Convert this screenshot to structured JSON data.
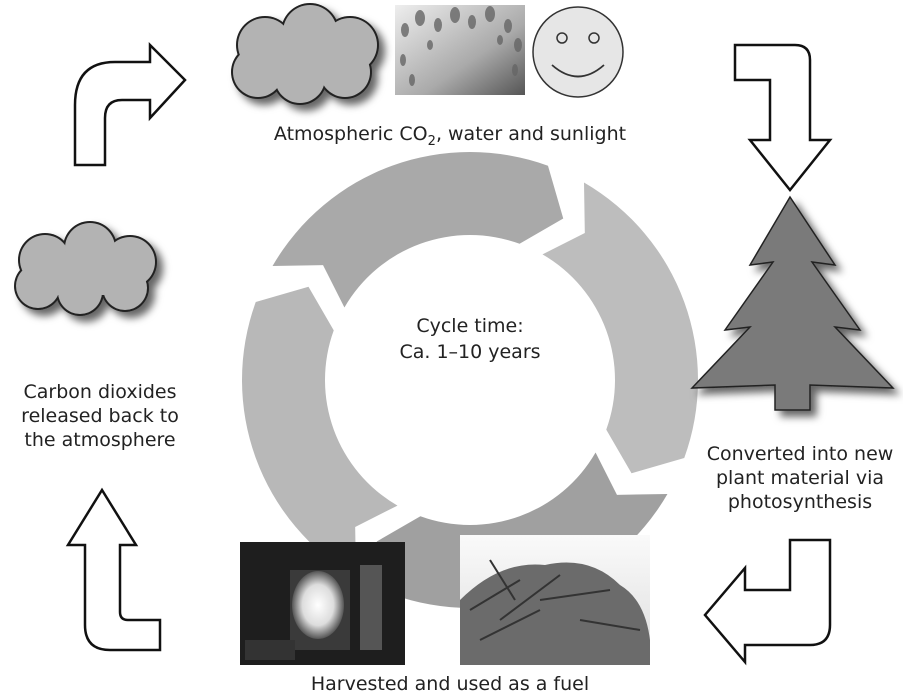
{
  "top": {
    "label_parts": [
      "Atmospheric CO",
      "2",
      ", water and sunlight"
    ]
  },
  "center": {
    "lines": [
      "Cycle time:",
      "Ca. 1–10 years"
    ]
  },
  "left": {
    "lines": [
      "Carbon dioxides",
      "released back to",
      "the atmosphere"
    ]
  },
  "right": {
    "lines": [
      "Converted into new",
      "plant material via",
      "photosynthesis"
    ]
  },
  "bottom": {
    "label": "Harvested and used as a fuel"
  }
}
